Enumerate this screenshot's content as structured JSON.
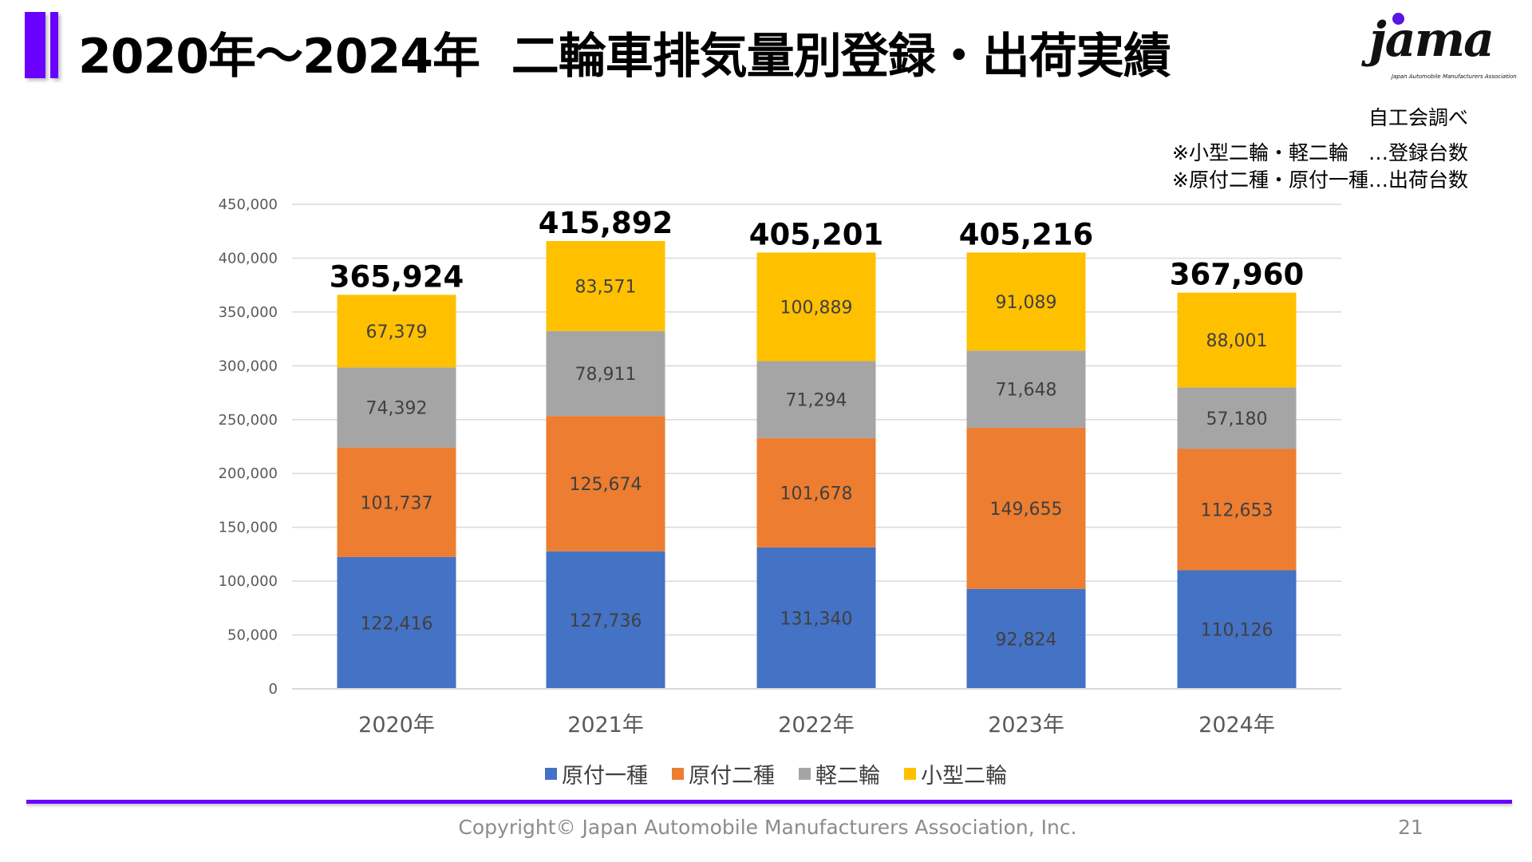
{
  "header": {
    "title": "2020年～2024年  二輪車排気量別登録・出荷実績",
    "logo_text": "jama",
    "logo_subtext": "Japan Automobile Manufacturers Association",
    "accent_color": "#6a00ff"
  },
  "source": "自工会調べ",
  "notes": [
    "※小型二輪・軽二輪　…登録台数",
    "※原付二種・原付一種…出荷台数"
  ],
  "chart_data": {
    "type": "bar",
    "stacked": true,
    "categories": [
      "2020年",
      "2021年",
      "2022年",
      "2023年",
      "2024年"
    ],
    "series": [
      {
        "name": "原付一種",
        "color": "#4472c4",
        "values": [
          122416,
          127736,
          131340,
          92824,
          110126
        ],
        "labels": [
          "122,416",
          "127,736",
          "131,340",
          "92,824",
          "110,126"
        ]
      },
      {
        "name": "原付二種",
        "color": "#ed7d31",
        "values": [
          101737,
          125674,
          101678,
          149655,
          112653
        ],
        "labels": [
          "101,737",
          "125,674",
          "101,678",
          "149,655",
          "112,653"
        ]
      },
      {
        "name": "軽二輪",
        "color": "#a5a5a5",
        "values": [
          74392,
          78911,
          71294,
          71648,
          57180
        ],
        "labels": [
          "74,392",
          "78,911",
          "71,294",
          "71,648",
          "57,180"
        ]
      },
      {
        "name": "小型二輪",
        "color": "#ffc000",
        "values": [
          67379,
          83571,
          100889,
          91089,
          88001
        ],
        "labels": [
          "67,379",
          "83,571",
          "100,889",
          "91,089",
          "88,001"
        ]
      }
    ],
    "totals": [
      "365,924",
      "415,892",
      "405,201",
      "405,216",
      "367,960"
    ],
    "ylim": [
      0,
      450000
    ],
    "yticks": [
      "0",
      "50,000",
      "100,000",
      "150,000",
      "200,000",
      "250,000",
      "300,000",
      "350,000",
      "400,000",
      "450,000"
    ],
    "grid": true,
    "legend_position": "bottom"
  },
  "footer": {
    "copyright": "Copyright© Japan Automobile Manufacturers Association, Inc.",
    "page_number": "21"
  }
}
